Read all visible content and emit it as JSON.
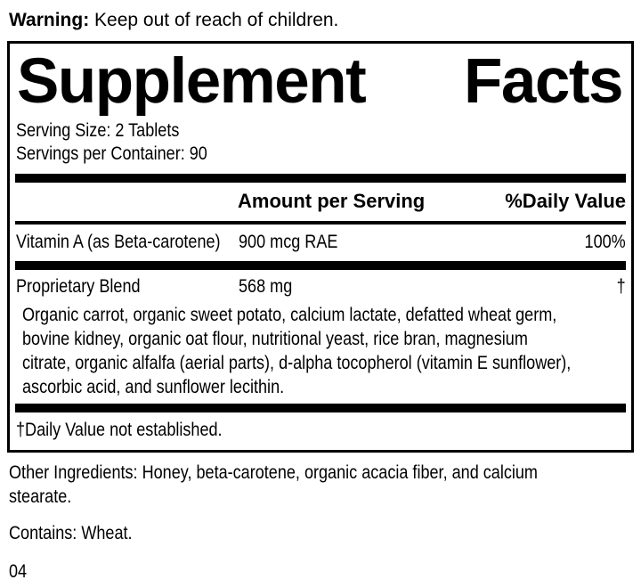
{
  "colors": {
    "text": "#000000",
    "background": "#ffffff"
  },
  "warning": {
    "label": "Warning:",
    "text": " Keep out of reach of children."
  },
  "panel": {
    "title_words": [
      "Supplement",
      "Facts"
    ],
    "serving_size": "Serving Size: 2 Tablets",
    "servings_per_container": "Servings per Container: 90",
    "headers": {
      "amount": "Amount per Serving",
      "daily_value": "%Daily Value"
    },
    "rows": [
      {
        "name": "Vitamin A (as Beta-carotene)",
        "amount": "900 mcg RAE",
        "daily_value": "100%"
      },
      {
        "name": "Proprietary Blend",
        "amount": "568 mg",
        "daily_value": "†"
      }
    ],
    "blend_lines": [
      "Organic carrot, organic sweet potato, calcium lactate, defatted wheat germ,",
      "bovine kidney, organic oat flour, nutritional yeast, rice bran, magnesium",
      "citrate, organic alfalfa (aerial parts), d-alpha tocopherol (vitamin E sunflower),",
      "ascorbic acid, and sunflower lecithin."
    ],
    "footnote": "†Daily Value not established."
  },
  "other_ingredients_lines": [
    "Other Ingredients: Honey, beta-carotene, organic acacia fiber, and calcium",
    "stearate."
  ],
  "contains": "Contains: Wheat.",
  "code": "04"
}
